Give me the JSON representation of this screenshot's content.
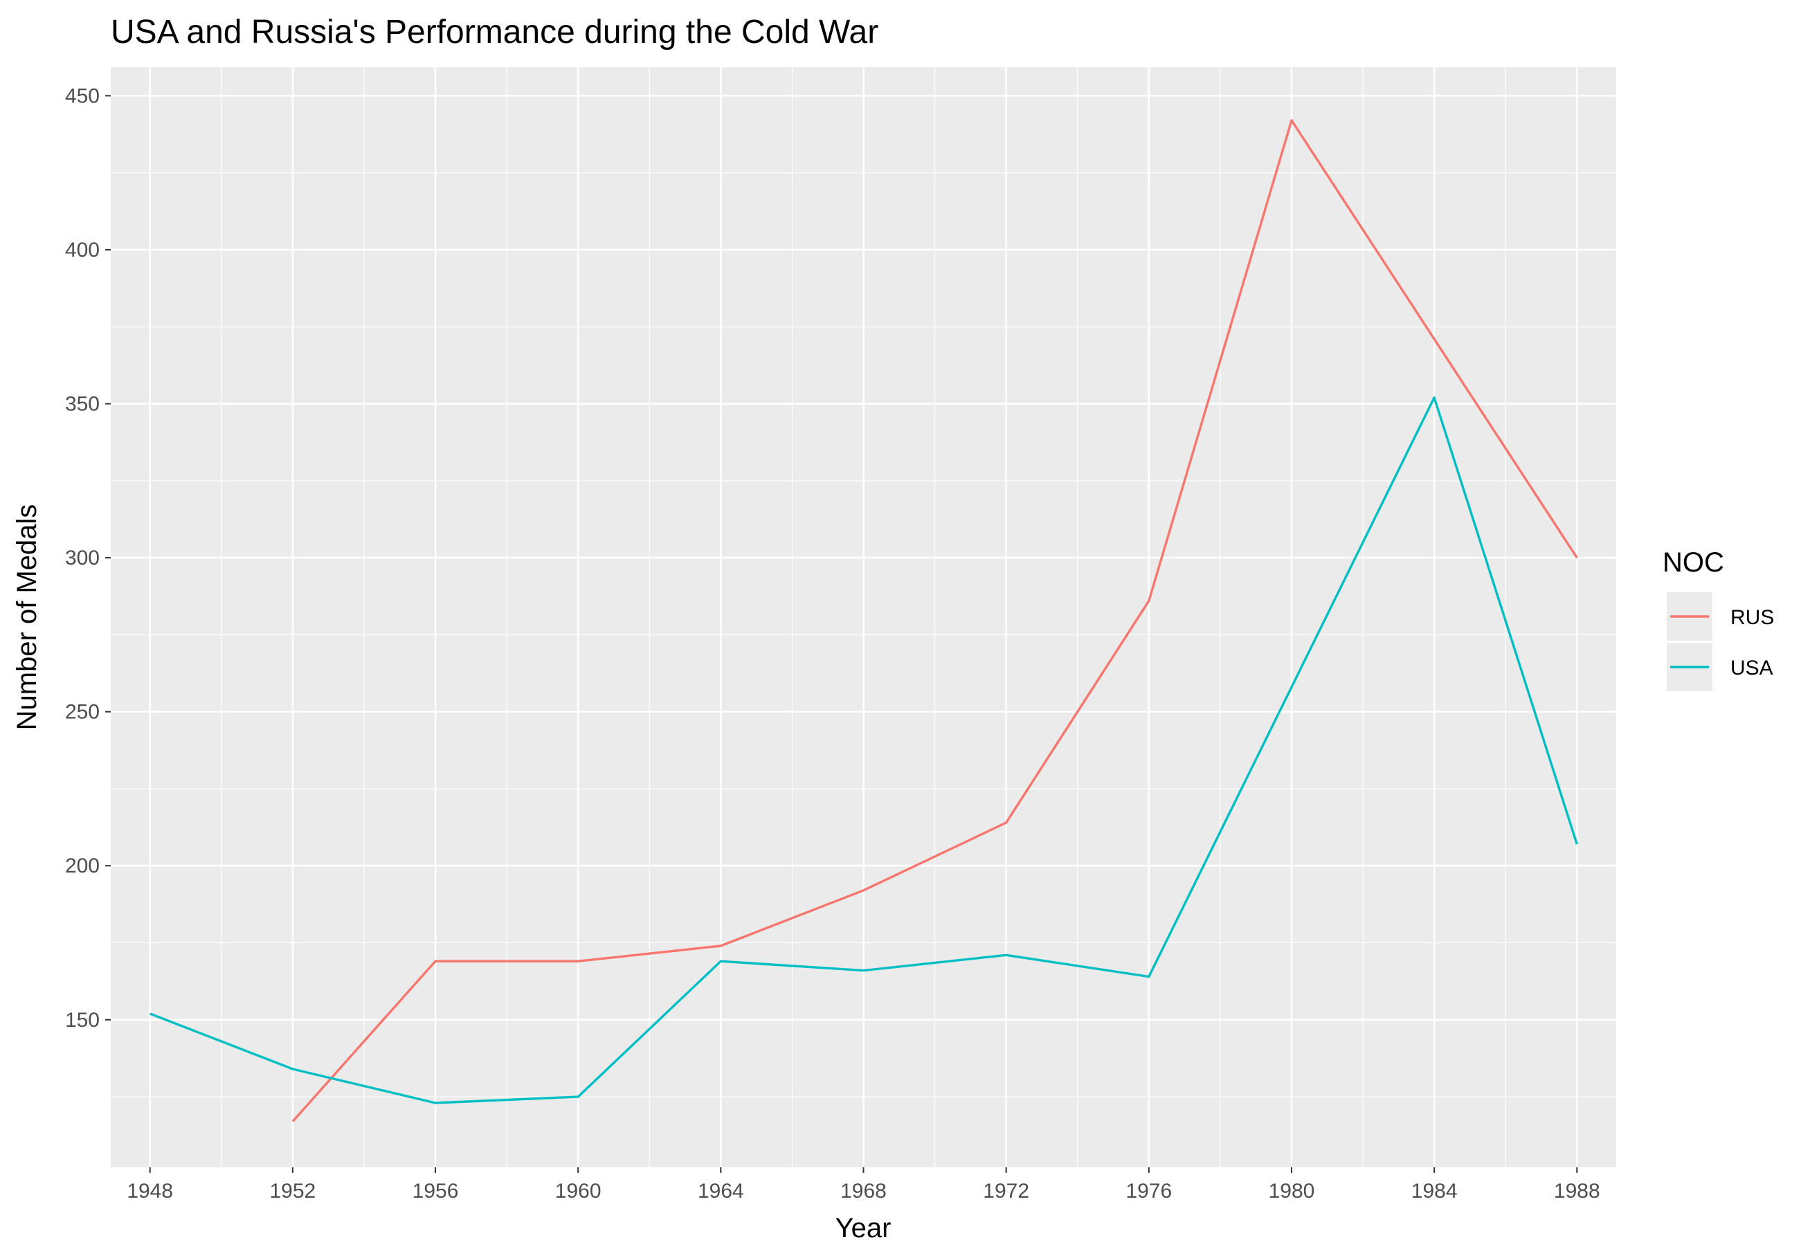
{
  "chart_data": {
    "type": "line",
    "title": "USA and Russia's Performance during the Cold War",
    "xlabel": "Year",
    "ylabel": "Number of Medals",
    "x": [
      1948,
      1952,
      1956,
      1960,
      1964,
      1968,
      1972,
      1976,
      1980,
      1984,
      1988
    ],
    "x_ticks": [
      "1948",
      "1952",
      "1956",
      "1960",
      "1964",
      "1968",
      "1972",
      "1976",
      "1980",
      "1984",
      "1988"
    ],
    "y_ticks": [
      "150",
      "200",
      "250",
      "300",
      "350",
      "400",
      "450"
    ],
    "xlim": [
      1946.9,
      1989.1
    ],
    "ylim": [
      102.1,
      459.3
    ],
    "grid": true,
    "legend": {
      "title": "NOC",
      "placement": "right"
    },
    "series": [
      {
        "name": "RUS",
        "color": "#F8766D",
        "values": [
          null,
          117,
          169,
          169,
          174,
          192,
          214,
          286,
          442,
          371,
          300
        ]
      },
      {
        "name": "USA",
        "color": "#00BFC4",
        "values": [
          152,
          134,
          123,
          125,
          169,
          166,
          171,
          164,
          258,
          352,
          207
        ]
      }
    ]
  }
}
